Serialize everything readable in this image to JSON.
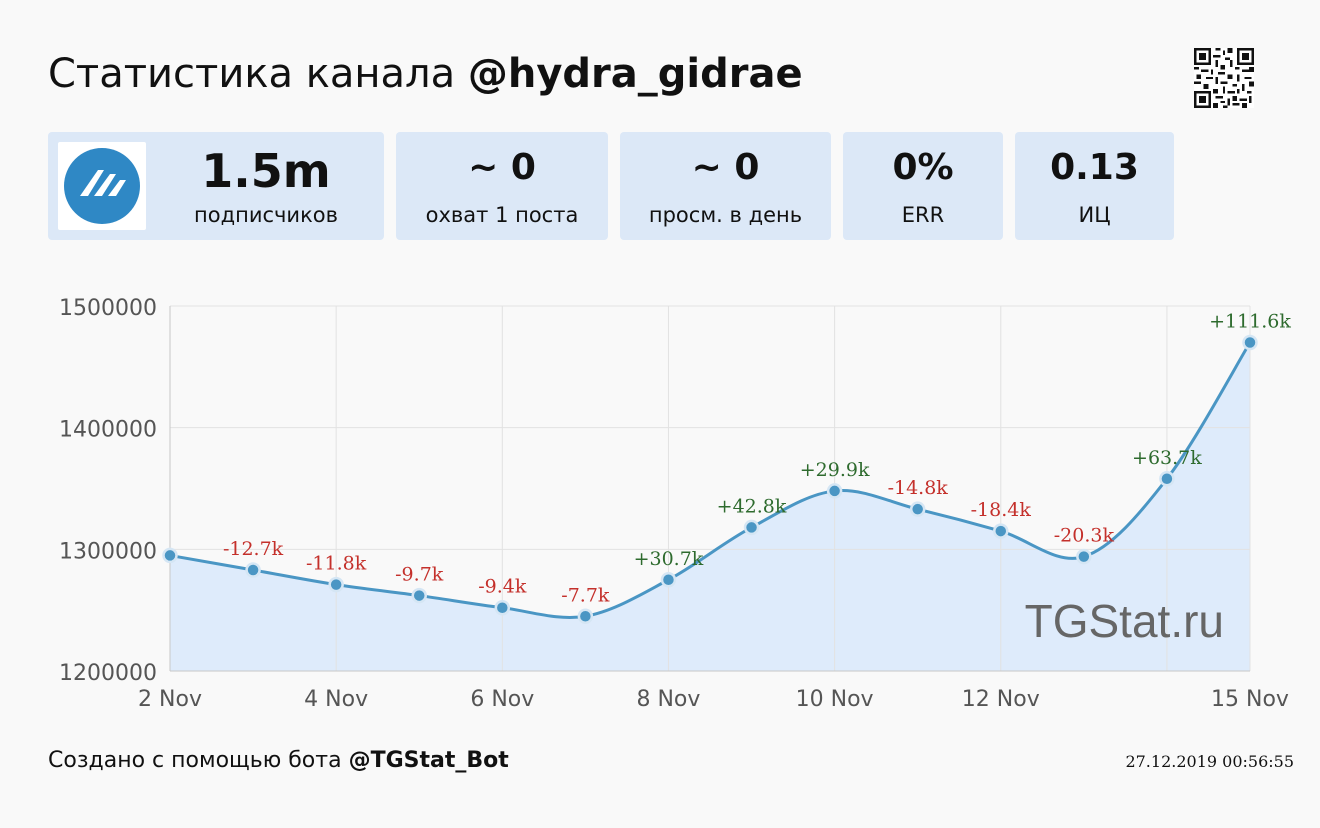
{
  "header": {
    "title_prefix": "Статистика канала",
    "channel_handle": "@hydra_gidrae"
  },
  "stats": {
    "subscribers": {
      "value": "1.5m",
      "label": "подписчиков"
    },
    "reach": {
      "value": "~ 0",
      "label": "охват 1 поста"
    },
    "daily_views": {
      "value": "~ 0",
      "label": "просм. в день"
    },
    "err": {
      "value": "0%",
      "label": "ERR"
    },
    "citation_index": {
      "value": "0.13",
      "label": "ИЦ"
    }
  },
  "footer": {
    "created_prefix": "Создано с помощью бота",
    "bot_handle": "@TGStat_Bot",
    "timestamp": "27.12.2019 00:56:55"
  },
  "colors": {
    "line": "#4a96c4",
    "fill": "#deebfb",
    "positive": "#2e6b2e",
    "negative": "#c4302b",
    "card_bg": "#dce8f7"
  },
  "chart_data": {
    "type": "line",
    "watermark": "TGStat.ru",
    "x": [
      "2 Nov",
      "3 Nov",
      "4 Nov",
      "5 Nov",
      "6 Nov",
      "7 Nov",
      "8 Nov",
      "9 Nov",
      "10 Nov",
      "11 Nov",
      "12 Nov",
      "13 Nov",
      "14 Nov",
      "15 Nov"
    ],
    "values": [
      1295000,
      1283000,
      1271000,
      1262000,
      1252000,
      1245000,
      1275000,
      1318000,
      1348000,
      1333000,
      1315000,
      1294000,
      1358000,
      1470000
    ],
    "point_labels": [
      "",
      "-12.7k",
      "-11.8k",
      "-9.7k",
      "-9.4k",
      "-7.7k",
      "+30.7k",
      "+42.8k",
      "+29.9k",
      "-14.8k",
      "-18.4k",
      "-20.3k",
      "+63.7k",
      "+111.6k"
    ],
    "x_tick_labels": [
      "2 Nov",
      "4 Nov",
      "6 Nov",
      "8 Nov",
      "10 Nov",
      "12 Nov",
      "15 Nov"
    ],
    "y_ticks": [
      1200000,
      1300000,
      1400000,
      1500000
    ],
    "y_tick_labels": [
      "1200000",
      "1300000",
      "1400000",
      "1500000"
    ],
    "ylim": [
      1200000,
      1500000
    ],
    "grid": true
  }
}
